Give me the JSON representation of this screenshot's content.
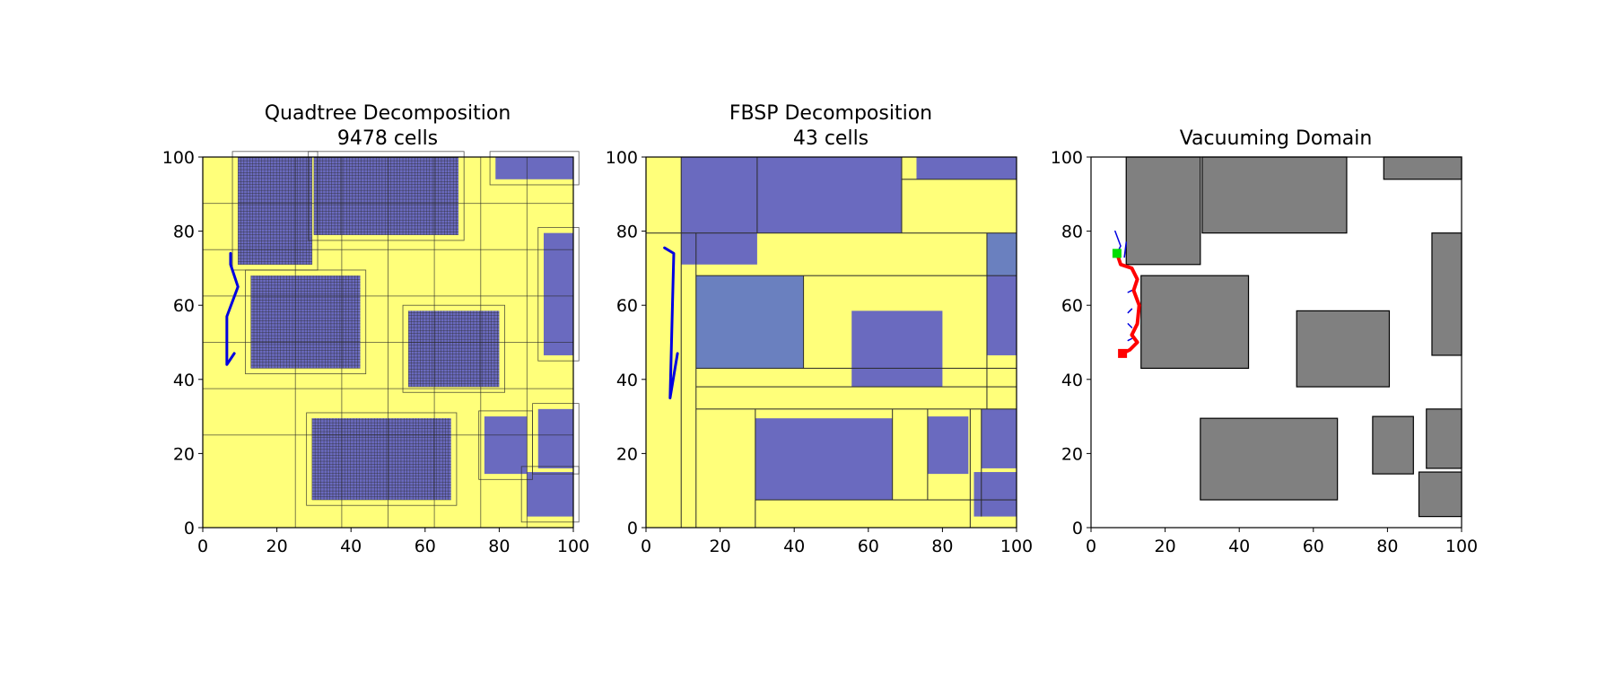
{
  "chart_data": [
    {
      "type": "decomposition",
      "title_lines": [
        "Quadtree Decomposition",
        "9478 cells"
      ],
      "xlim": [
        0,
        100
      ],
      "ylim": [
        0,
        100
      ],
      "xticks": [
        0,
        20,
        40,
        60,
        80,
        100
      ],
      "yticks": [
        0,
        20,
        40,
        60,
        80,
        100
      ],
      "colors": {
        "free": "#ffff7a",
        "obstacle": "#6a6abf",
        "grid": "#2a2a2a",
        "path": "#0000e0"
      },
      "obstacles": [
        [
          9.5,
          71,
          29.5,
          100
        ],
        [
          30,
          79,
          69,
          100
        ],
        [
          79,
          94,
          100,
          100
        ],
        [
          13,
          43,
          42.5,
          68
        ],
        [
          55.5,
          38,
          80,
          58.5
        ],
        [
          92,
          46.5,
          100,
          79.5
        ],
        [
          29.5,
          7.5,
          67,
          29.5
        ],
        [
          76,
          14.5,
          87.5,
          30
        ],
        [
          90.5,
          16,
          100,
          32
        ],
        [
          87.5,
          3,
          100,
          15
        ]
      ],
      "dense_regions": [
        [
          13,
          43,
          42.5,
          68
        ],
        [
          9.5,
          71,
          29.5,
          100
        ],
        [
          30,
          79,
          69,
          100
        ],
        [
          55.5,
          38,
          80,
          58.5
        ],
        [
          29.5,
          7.5,
          67,
          29.5
        ]
      ],
      "grid_lines": {
        "x": [
          25,
          50,
          75,
          37.5,
          62.5,
          87.5
        ],
        "y": [
          25,
          50,
          75,
          37.5,
          62.5,
          87.5
        ]
      },
      "path": [
        [
          7.5,
          74
        ],
        [
          7.5,
          71
        ],
        [
          9.5,
          65
        ],
        [
          6.5,
          57
        ],
        [
          6.5,
          44
        ],
        [
          8.5,
          47
        ]
      ]
    },
    {
      "type": "decomposition",
      "title_lines": [
        "FBSP Decomposition",
        "43 cells"
      ],
      "xlim": [
        0,
        100
      ],
      "ylim": [
        0,
        100
      ],
      "xticks": [
        0,
        20,
        40,
        60,
        80,
        100
      ],
      "yticks": [
        0,
        20,
        40,
        60,
        80,
        100
      ],
      "colors": {
        "free": "#ffff7a",
        "obstacle": "#6a6abf",
        "mixed": "#6a80bf",
        "grid": "#2a2a2a",
        "path": "#0000e0"
      },
      "obstacles": [
        [
          9.5,
          79.5,
          69,
          100
        ],
        [
          9.5,
          71,
          30,
          79.5
        ],
        [
          73,
          94,
          100,
          100
        ],
        [
          13.5,
          43,
          42.5,
          68
        ],
        [
          55.5,
          38,
          80,
          58.5
        ],
        [
          92,
          46.5,
          100,
          79.5
        ],
        [
          29.5,
          7.5,
          66.5,
          29.5
        ],
        [
          76,
          14.5,
          87,
          30
        ],
        [
          90.5,
          16,
          100,
          32
        ],
        [
          88.5,
          3,
          100,
          15
        ]
      ],
      "mixed_cells": [
        [
          13.5,
          43,
          42.5,
          68
        ],
        [
          92,
          68,
          100,
          79.5
        ]
      ],
      "splits": [
        [
          9.5,
          0,
          9.5,
          100
        ],
        [
          0,
          79.5,
          100,
          79.5
        ],
        [
          13.5,
          0,
          13.5,
          79.5
        ],
        [
          30,
          79.5,
          30,
          100
        ],
        [
          69,
          79.5,
          69,
          100
        ],
        [
          69,
          94,
          100,
          94
        ],
        [
          13.5,
          68,
          100,
          68
        ],
        [
          13.5,
          43,
          100,
          43
        ],
        [
          13.5,
          38,
          100,
          38
        ],
        [
          13.5,
          32,
          100,
          32
        ],
        [
          42.5,
          43,
          42.5,
          68
        ],
        [
          92,
          32,
          92,
          79.5
        ],
        [
          29.5,
          0,
          29.5,
          32
        ],
        [
          29.5,
          7.5,
          100,
          7.5
        ],
        [
          66.5,
          7.5,
          66.5,
          32
        ],
        [
          76,
          7.5,
          76,
          32
        ],
        [
          87.5,
          0,
          87.5,
          32
        ],
        [
          90.5,
          3,
          90.5,
          32
        ]
      ],
      "path": [
        [
          5,
          75.5
        ],
        [
          7.5,
          74
        ],
        [
          6.5,
          35
        ],
        [
          8.5,
          47
        ]
      ]
    },
    {
      "type": "domain",
      "title_lines": [
        "Vacuuming Domain"
      ],
      "xlim": [
        0,
        100
      ],
      "ylim": [
        0,
        100
      ],
      "xticks": [
        0,
        20,
        40,
        60,
        80,
        100
      ],
      "yticks": [
        0,
        20,
        40,
        60,
        80,
        100
      ],
      "colors": {
        "obstacle": "#808080",
        "background": "#ffffff",
        "trajectory": "#ff0000",
        "start": "#00dd00",
        "goal": "#ff0000",
        "branch": "#0000e0"
      },
      "obstacles": [
        [
          9.5,
          71,
          29.5,
          100
        ],
        [
          30,
          79.5,
          69,
          100
        ],
        [
          79,
          94,
          100,
          100
        ],
        [
          13.5,
          43,
          42.5,
          68
        ],
        [
          55.5,
          38,
          80.5,
          58.5
        ],
        [
          92,
          46.5,
          100,
          79.5
        ],
        [
          29.5,
          7.5,
          66.5,
          29.5
        ],
        [
          76,
          14.5,
          87,
          30
        ],
        [
          90.5,
          16,
          100,
          32
        ],
        [
          88.5,
          3,
          100,
          15
        ]
      ],
      "start": [
        7,
        74
      ],
      "goal": [
        8.5,
        47
      ],
      "trajectory": [
        [
          7,
          74
        ],
        [
          8,
          71
        ],
        [
          11,
          70
        ],
        [
          12.5,
          67
        ],
        [
          11.5,
          64
        ],
        [
          13,
          60
        ],
        [
          12.5,
          55
        ],
        [
          11,
          52
        ],
        [
          12.5,
          50
        ],
        [
          10.5,
          48
        ],
        [
          8.5,
          47
        ]
      ],
      "branches": [
        [
          [
            7,
            74
          ],
          [
            8,
            76
          ],
          [
            6.5,
            80
          ]
        ],
        [
          [
            9,
            73
          ],
          [
            9.5,
            77
          ]
        ],
        [
          [
            11,
            64
          ],
          [
            10,
            63.5
          ]
        ],
        [
          [
            11,
            59
          ],
          [
            10,
            58
          ]
        ],
        [
          [
            11,
            54
          ],
          [
            10,
            55
          ]
        ],
        [
          [
            11,
            51
          ],
          [
            10,
            50.5
          ]
        ]
      ]
    }
  ]
}
